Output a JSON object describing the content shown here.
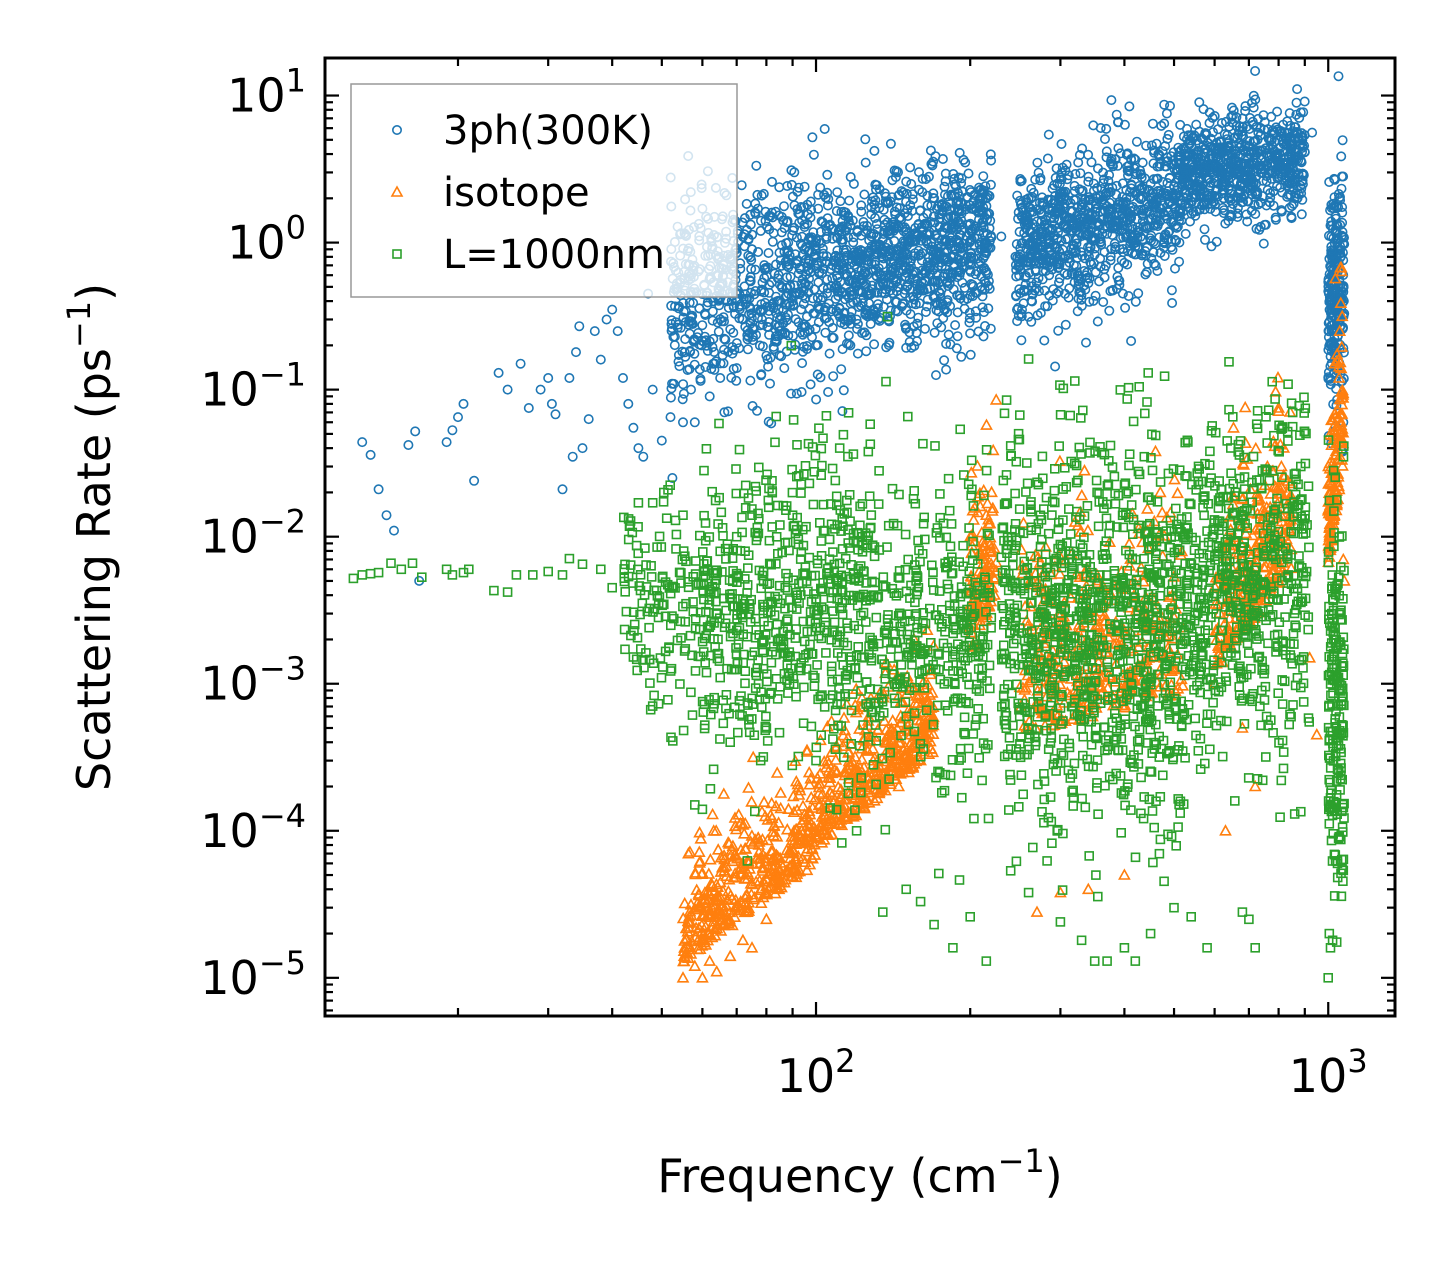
{
  "chart_data": {
    "type": "scatter",
    "xscale": "log",
    "yscale": "log",
    "xlabel": "Frequency (cm",
    "xlabel_unit_exp": "−1",
    "xlabel_suffix": ")",
    "ylabel": "Scattering Rate (ps",
    "ylabel_unit_exp": "−1",
    "ylabel_suffix": ")",
    "xlim": [
      11,
      1350
    ],
    "ylim": [
      5.5e-06,
      18
    ],
    "x_ticks": [
      {
        "value": 100,
        "base": "10",
        "exp": "2"
      },
      {
        "value": 1000,
        "base": "10",
        "exp": "3"
      }
    ],
    "y_ticks": [
      {
        "value": 10,
        "base": "10",
        "exp": "1"
      },
      {
        "value": 1,
        "base": "10",
        "exp": "0"
      },
      {
        "value": 0.1,
        "base": "10",
        "exp": "−1"
      },
      {
        "value": 0.01,
        "base": "10",
        "exp": "−2"
      },
      {
        "value": 0.001,
        "base": "10",
        "exp": "−3"
      },
      {
        "value": 0.0001,
        "base": "10",
        "exp": "−4"
      },
      {
        "value": 1e-05,
        "base": "10",
        "exp": "−5"
      }
    ],
    "legend_position": "top-left",
    "series": [
      {
        "name": "3ph(300K)",
        "marker": "circle",
        "color": "#1f77b4",
        "points": [
          [
            13.0,
            0.044
          ],
          [
            13.5,
            0.036
          ],
          [
            14.0,
            0.021
          ],
          [
            14.5,
            0.014
          ],
          [
            15.0,
            0.011
          ],
          [
            16.0,
            0.042
          ],
          [
            16.5,
            0.052
          ],
          [
            16.8,
            0.005
          ],
          [
            19.0,
            0.044
          ],
          [
            19.5,
            0.053
          ],
          [
            20.0,
            0.065
          ],
          [
            20.5,
            0.08
          ],
          [
            21.5,
            0.024
          ],
          [
            24.0,
            0.13
          ],
          [
            25.0,
            0.1
          ],
          [
            26.5,
            0.15
          ],
          [
            27.5,
            0.075
          ],
          [
            29.0,
            0.1
          ],
          [
            30.0,
            0.12
          ],
          [
            30.5,
            0.08
          ],
          [
            31.0,
            0.068
          ],
          [
            32.0,
            0.021
          ],
          [
            33.0,
            0.12
          ],
          [
            33.5,
            0.035
          ],
          [
            34.0,
            0.18
          ],
          [
            34.5,
            0.27
          ],
          [
            35.0,
            0.04
          ],
          [
            36.0,
            0.063
          ],
          [
            37.0,
            0.25
          ],
          [
            38.0,
            0.16
          ],
          [
            39.0,
            0.3
          ],
          [
            40.0,
            0.35
          ],
          [
            41.0,
            0.25
          ],
          [
            42.0,
            0.12
          ],
          [
            43.0,
            0.08
          ],
          [
            44.0,
            0.055
          ],
          [
            45.0,
            0.04
          ],
          [
            46.0,
            0.035
          ],
          [
            47.0,
            0.45
          ],
          [
            48.0,
            0.1
          ],
          [
            50.0,
            0.045
          ],
          [
            52.0,
            0.065
          ],
          [
            55.0,
            0.06
          ],
          [
            57.0,
            0.1
          ],
          [
            58.0,
            0.06
          ],
          [
            60.0,
            1.7
          ],
          [
            61.0,
            1.5
          ],
          [
            62.0,
            0.09
          ],
          [
            63.0,
            0.15
          ],
          [
            65.0,
            0.12
          ],
          [
            68.0,
            0.8
          ],
          [
            70.0,
            0.14
          ],
          [
            72.0,
            0.3
          ],
          [
            75.0,
            0.9
          ],
          [
            78.0,
            1.2
          ],
          [
            80.0,
            0.17
          ],
          [
            82.0,
            1.6
          ],
          [
            85.0,
            0.3
          ],
          [
            88.0,
            1.4
          ],
          [
            90.0,
            0.4
          ],
          [
            95.0,
            2.4
          ],
          [
            100.0,
            0.2
          ],
          [
            105.0,
            1.2
          ],
          [
            110.0,
            2.2
          ],
          [
            120.0,
            0.3
          ],
          [
            125.0,
            3.5
          ],
          [
            130.0,
            4.2
          ],
          [
            140.0,
            4.7
          ],
          [
            150.0,
            2.6
          ],
          [
            170.0,
            2.0
          ],
          [
            190.0,
            1.8
          ],
          [
            210.0,
            2.3
          ],
          [
            230.0,
            1.1
          ],
          [
            260.0,
            2.0
          ],
          [
            300.0,
            1.7
          ],
          [
            340.0,
            2.6
          ],
          [
            380.0,
            3.3
          ],
          [
            430.0,
            2.9
          ],
          [
            480.0,
            3.3
          ],
          [
            560.0,
            9.0
          ],
          [
            620.0,
            6.5
          ],
          [
            700.0,
            4.5
          ],
          [
            780.0,
            5.8
          ],
          [
            850.0,
            4.9
          ],
          [
            930.0,
            5.6
          ],
          [
            1020.0,
            0.35
          ],
          [
            1050.0,
            2.0
          ],
          [
            1065.0,
            1.6
          ],
          [
            1070.0,
            0.06
          ]
        ],
        "bands": [
          {
            "x": [
              52,
              110
            ],
            "y_center": [
              0.35,
              0.7
            ],
            "spread": 0.33,
            "count": 700
          },
          {
            "x": [
              110,
              220
            ],
            "y_center": [
              0.6,
              1.0
            ],
            "spread": 0.28,
            "count": 900
          },
          {
            "x": [
              245,
              520
            ],
            "y_center": [
              0.9,
              2.0
            ],
            "spread": 0.26,
            "count": 900
          },
          {
            "x": [
              520,
              900
            ],
            "y_center": [
              2.8,
              3.8
            ],
            "spread": 0.18,
            "count": 700
          },
          {
            "x": [
              1000,
              1075
            ],
            "y_center": [
              0.35,
              0.6
            ],
            "spread": 0.38,
            "count": 260
          }
        ]
      },
      {
        "name": "isotope",
        "marker": "triangle",
        "color": "#ff7f0e",
        "points": [
          [
            55.0,
            1e-05
          ],
          [
            58.0,
            1.2e-05
          ],
          [
            60.0,
            1e-05
          ],
          [
            62.0,
            1.3e-05
          ],
          [
            64.0,
            1.1e-05
          ],
          [
            68.0,
            1.4e-05
          ],
          [
            72.0,
            1.8e-05
          ],
          [
            75.0,
            1.6e-05
          ],
          [
            80.0,
            2.5e-05
          ],
          [
            90.0,
            6e-05
          ],
          [
            100.0,
            9e-05
          ],
          [
            115.0,
            0.00012
          ],
          [
            130.0,
            0.00016
          ],
          [
            145.0,
            0.0002
          ],
          [
            160.0,
            0.0003
          ],
          [
            215.0,
            0.014
          ],
          [
            218.0,
            0.008
          ],
          [
            270.0,
            2.8e-05
          ],
          [
            300.0,
            3.8e-05
          ],
          [
            340.0,
            4e-05
          ],
          [
            400.0,
            5e-05
          ],
          [
            460.0,
            0.038
          ],
          [
            470.0,
            0.02
          ],
          [
            600.0,
            0.001
          ],
          [
            630.0,
            0.0001
          ],
          [
            680.0,
            0.0005
          ],
          [
            720.0,
            0.0002
          ],
          [
            800.0,
            0.075
          ],
          [
            810.0,
            0.03
          ],
          [
            920.0,
            0.0015
          ],
          [
            950.0,
            0.00045
          ],
          [
            1000.0,
            0.015
          ],
          [
            1030.0,
            0.15
          ],
          [
            1050.0,
            0.12
          ],
          [
            1070.0,
            0.007
          ],
          [
            1075.0,
            0.005
          ]
        ],
        "bands": [
          {
            "x": [
              55,
              100
            ],
            "y_start": [
              1.5e-05,
              7e-05
            ],
            "spread": 0.35,
            "count": 420
          },
          {
            "x": [
              100,
              170
            ],
            "y_start": [
              9e-05,
              0.0004
            ],
            "spread": 0.35,
            "count": 420
          },
          {
            "x": [
              200,
              225
            ],
            "y_start": [
              0.002,
              0.005
            ],
            "spread": 0.55,
            "count": 120
          },
          {
            "x": [
              250,
              520
            ],
            "y_start": [
              0.0006,
              0.0012
            ],
            "spread": 0.7,
            "count": 400
          },
          {
            "x": [
              600,
              850
            ],
            "y_start": [
              0.0015,
              0.008
            ],
            "spread": 0.6,
            "count": 300
          },
          {
            "x": [
              1000,
              1070
            ],
            "y_start": [
              0.008,
              0.04
            ],
            "spread": 0.55,
            "count": 150
          }
        ]
      },
      {
        "name": "L=1000nm",
        "marker": "square",
        "color": "#2ca02c",
        "points": [
          [
            12.5,
            0.0052
          ],
          [
            13.0,
            0.0055
          ],
          [
            13.5,
            0.0056
          ],
          [
            14.0,
            0.0057
          ],
          [
            14.8,
            0.0066
          ],
          [
            15.5,
            0.006
          ],
          [
            16.3,
            0.0066
          ],
          [
            17.0,
            0.0053
          ],
          [
            19.0,
            0.006
          ],
          [
            19.5,
            0.0055
          ],
          [
            20.5,
            0.0057
          ],
          [
            21.0,
            0.006
          ],
          [
            23.5,
            0.0043
          ],
          [
            25.0,
            0.0042
          ],
          [
            26.0,
            0.0055
          ],
          [
            28.0,
            0.0055
          ],
          [
            30.0,
            0.0058
          ],
          [
            32.0,
            0.0055
          ],
          [
            33.0,
            0.0071
          ],
          [
            35.0,
            0.0065
          ],
          [
            38.0,
            0.006
          ],
          [
            40.0,
            0.0045
          ],
          [
            45.0,
            0.017
          ],
          [
            48.0,
            0.017
          ],
          [
            55.0,
            0.014
          ],
          [
            58.0,
            0.00015
          ],
          [
            60.0,
            0.00014
          ],
          [
            65.0,
            0.0011
          ],
          [
            68.0,
            0.0004
          ],
          [
            70.0,
            0.01
          ],
          [
            75.0,
            0.014
          ],
          [
            78.0,
            0.0003
          ],
          [
            80.0,
            0.0005
          ],
          [
            85.0,
            0.012
          ],
          [
            90.0,
            0.014
          ],
          [
            100.0,
            0.0003
          ],
          [
            110.0,
            0.012
          ],
          [
            120.0,
            0.0001
          ],
          [
            135.0,
            2.8e-05
          ],
          [
            150.0,
            4e-05
          ],
          [
            160.0,
            3.3e-05
          ],
          [
            170.0,
            2.3e-05
          ],
          [
            185.0,
            1.6e-05
          ],
          [
            200.0,
            2.6e-05
          ],
          [
            215.0,
            1.3e-05
          ],
          [
            260.0,
            3.8e-05
          ],
          [
            300.0,
            2.4e-05
          ],
          [
            330.0,
            1.8e-05
          ],
          [
            350.0,
            1.3e-05
          ],
          [
            370.0,
            1.3e-05
          ],
          [
            400.0,
            1.6e-05
          ],
          [
            420.0,
            1.3e-05
          ],
          [
            450.0,
            2e-05
          ],
          [
            500.0,
            3e-05
          ],
          [
            540.0,
            2.6e-05
          ],
          [
            580.0,
            1.6e-05
          ],
          [
            640.0,
            0.073
          ],
          [
            680.0,
            2.8e-05
          ],
          [
            700.0,
            2.5e-05
          ],
          [
            720.0,
            1.6e-05
          ],
          [
            860.0,
            0.00013
          ],
          [
            1000.0,
            1e-05
          ],
          [
            1005.0,
            2e-05
          ],
          [
            1010.0,
            1.6e-05
          ],
          [
            1020.0,
            1.8e-05
          ]
        ],
        "bands": [
          {
            "x": [
              42,
              60
            ],
            "y_center": [
              0.004,
              0.0025
            ],
            "spread": 0.35,
            "count": 140
          },
          {
            "x": [
              60,
              220
            ],
            "y_center": [
              0.0035,
              0.0022
            ],
            "spread": 0.55,
            "count": 1000
          },
          {
            "x": [
              230,
              520
            ],
            "y_center": [
              0.0025,
              0.002
            ],
            "spread": 0.65,
            "count": 1000
          },
          {
            "x": [
              520,
              920
            ],
            "y_center": [
              0.004,
              0.0055
            ],
            "spread": 0.55,
            "count": 600
          },
          {
            "x": [
              1000,
              1075
            ],
            "y_center": [
              0.001,
              0.0006
            ],
            "spread": 0.7,
            "count": 200
          }
        ]
      }
    ]
  }
}
